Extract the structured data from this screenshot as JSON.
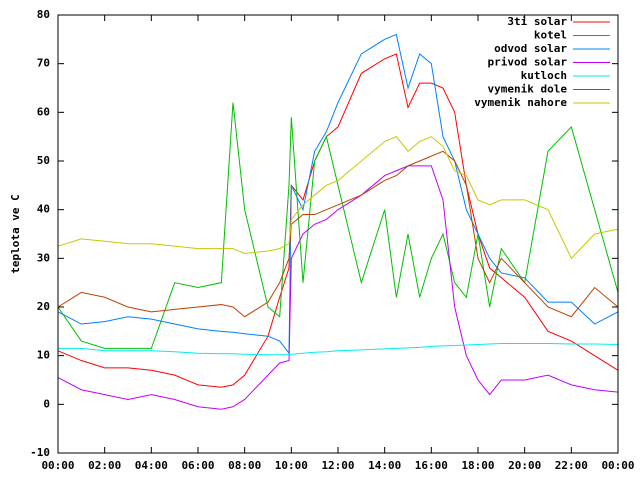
{
  "chart_data": {
    "type": "line",
    "ylabel": "teplota ve C",
    "x": [
      0,
      1,
      2,
      3,
      4,
      5,
      6,
      7,
      7.5,
      8,
      9,
      9.5,
      9.9,
      10,
      10.5,
      11,
      11.5,
      12,
      13,
      14,
      14.5,
      15,
      15.5,
      16,
      16.5,
      17,
      17.5,
      18,
      18.5,
      19,
      20,
      21,
      22,
      23,
      24
    ],
    "series": [
      {
        "name": "3ti solar",
        "color": "#ff0000",
        "values": [
          11,
          9,
          7.5,
          7.5,
          7,
          6,
          4,
          3.5,
          4,
          6,
          14,
          22,
          28,
          45,
          42,
          50,
          55,
          57,
          68,
          71,
          72,
          61,
          66,
          66,
          65,
          60,
          45,
          35,
          28,
          26,
          22,
          15,
          13,
          10,
          7
        ]
      },
      {
        "name": "kotel",
        "color": "#00c000",
        "values": [
          20,
          13,
          11.5,
          11.5,
          11.5,
          25,
          24,
          25,
          62,
          40,
          20,
          18,
          45,
          59,
          25,
          50,
          55,
          45,
          25,
          40,
          22,
          35,
          22,
          30,
          35,
          25,
          22,
          35,
          20,
          32,
          25,
          52,
          57,
          40,
          23
        ]
      },
      {
        "name": "odvod solar",
        "color": "#0080ff",
        "values": [
          19,
          16.5,
          17,
          18,
          17.5,
          16.5,
          15.5,
          15,
          14.8,
          14.5,
          14,
          13,
          10.5,
          45,
          40,
          52,
          56,
          62,
          72,
          75,
          76,
          65,
          72,
          70,
          55,
          50,
          40,
          35,
          30,
          27,
          26,
          21,
          21,
          16.5,
          19
        ]
      },
      {
        "name": "privod solar",
        "color": "#c000ff",
        "values": [
          5.5,
          3,
          2,
          1,
          2,
          1,
          -0.5,
          -1,
          -0.5,
          1,
          6,
          8.5,
          9,
          30,
          35,
          37,
          38,
          40,
          43,
          47,
          48,
          49,
          49,
          49,
          42,
          20,
          10,
          5,
          2,
          5,
          5,
          6,
          4,
          3,
          2.5
        ]
      },
      {
        "name": "kutloch",
        "color": "#00eeee",
        "values": [
          11.5,
          11.5,
          11,
          11,
          11,
          10.8,
          10.5,
          10.4,
          10.4,
          10.3,
          10.2,
          10.2,
          10.2,
          10.3,
          10.5,
          10.7,
          10.8,
          11,
          11.2,
          11.4,
          11.5,
          11.6,
          11.7,
          11.9,
          12,
          12.1,
          12.2,
          12.3,
          12.4,
          12.5,
          12.5,
          12.5,
          12.4,
          12.4,
          12.3
        ]
      },
      {
        "name": "vymenik dole",
        "color": "#c04000",
        "values": [
          20,
          23,
          22,
          20,
          19,
          19.5,
          20,
          20.5,
          20,
          18,
          21,
          25,
          30,
          37,
          39,
          39,
          40,
          41,
          43,
          46,
          47,
          49,
          50,
          51,
          52,
          50,
          45,
          30,
          25,
          30,
          25,
          20,
          18,
          24,
          20
        ]
      },
      {
        "name": "vymenik nahore",
        "color": "#c8c800",
        "values": [
          32.5,
          34,
          33.5,
          33,
          33,
          32.5,
          32,
          32,
          32,
          31,
          31.5,
          32,
          33,
          38,
          41,
          43,
          45,
          46,
          50,
          54,
          55,
          52,
          54,
          55,
          53,
          48,
          47,
          42,
          41,
          42,
          42,
          40,
          30,
          35,
          36
        ]
      }
    ],
    "xlim": [
      0,
      24
    ],
    "xticks": [
      {
        "value": 0,
        "label": "00:00"
      },
      {
        "value": 2,
        "label": "02:00"
      },
      {
        "value": 4,
        "label": "04:00"
      },
      {
        "value": 6,
        "label": "06:00"
      },
      {
        "value": 8,
        "label": "08:00"
      },
      {
        "value": 10,
        "label": "10:00"
      },
      {
        "value": 12,
        "label": "12:00"
      },
      {
        "value": 14,
        "label": "14:00"
      },
      {
        "value": 16,
        "label": "16:00"
      },
      {
        "value": 18,
        "label": "18:00"
      },
      {
        "value": 20,
        "label": "20:00"
      },
      {
        "value": 22,
        "label": "22:00"
      },
      {
        "value": 24,
        "label": "00:00"
      }
    ],
    "ylim": [
      -10,
      80
    ],
    "yticks": [
      -10,
      0,
      10,
      20,
      30,
      40,
      50,
      60,
      70,
      80
    ],
    "grid": false,
    "legend": "top-right"
  }
}
